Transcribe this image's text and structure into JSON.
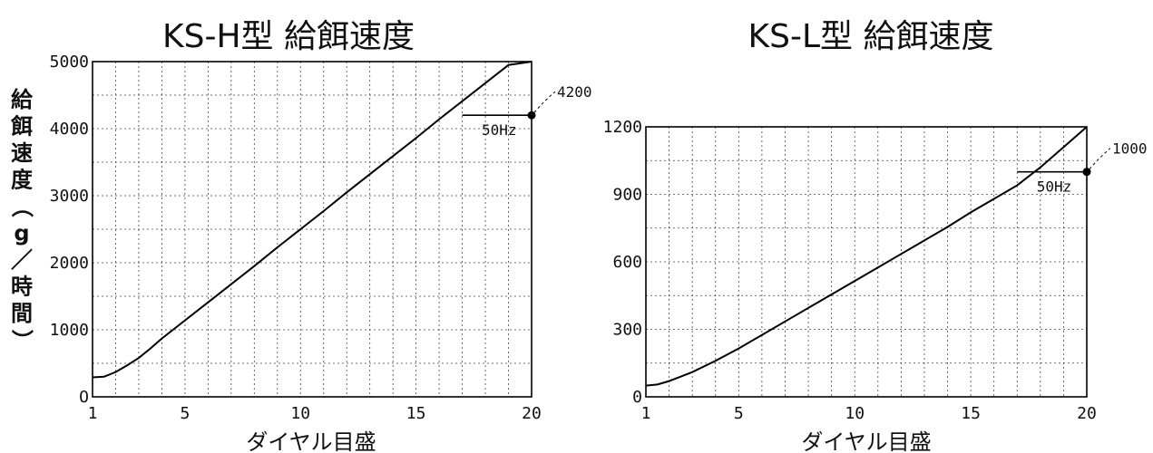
{
  "chart_data": [
    {
      "type": "line",
      "title": "KS-H型 給餌速度",
      "xlabel": "ダイヤル目盛",
      "ylabel": "給餌速度（g／時間）",
      "xlim": [
        1,
        20
      ],
      "ylim": [
        0,
        5000
      ],
      "x_ticks": [
        "1",
        "5",
        "10",
        "15",
        "20"
      ],
      "y_ticks": [
        "O",
        "1000",
        "2000",
        "3000",
        "4000",
        "5000"
      ],
      "grid": true,
      "series": [
        {
          "x": [
            1,
            1.5,
            2,
            2.5,
            3,
            3.5,
            4,
            5,
            6,
            7,
            8,
            9,
            10,
            11,
            12,
            13,
            14,
            15,
            16,
            17,
            18,
            19,
            20
          ],
          "y": [
            290,
            300,
            370,
            470,
            580,
            720,
            870,
            1140,
            1410,
            1680,
            1950,
            2230,
            2500,
            2770,
            3050,
            3320,
            3590,
            3860,
            4140,
            4410,
            4680,
            4950,
            5000
          ]
        }
      ],
      "annotations": {
        "hz_label": "50Hz",
        "hz_value_label": "4200",
        "hz_value": 4200,
        "hz_x_start": 17,
        "hz_x_end": 20
      }
    },
    {
      "type": "line",
      "title": "KS-L型 給餌速度",
      "xlabel": "ダイヤル目盛",
      "xlim": [
        1,
        20
      ],
      "ylim": [
        0,
        1200
      ],
      "x_ticks": [
        "1",
        "5",
        "10",
        "15",
        "20"
      ],
      "y_ticks": [
        "0",
        "300",
        "600",
        "900",
        "1200"
      ],
      "grid": true,
      "series": [
        {
          "x": [
            1,
            1.5,
            2,
            2.5,
            3,
            4,
            5,
            6,
            7,
            8,
            9,
            10,
            11,
            12,
            13,
            14,
            15,
            16,
            17,
            18,
            19,
            20
          ],
          "y": [
            50,
            55,
            70,
            90,
            110,
            160,
            215,
            275,
            335,
            395,
            455,
            515,
            575,
            635,
            695,
            755,
            820,
            880,
            940,
            1020,
            1110,
            1200
          ]
        }
      ],
      "annotations": {
        "hz_label": "50Hz",
        "hz_value_label": "1000",
        "hz_value": 1000,
        "hz_x_start": 17,
        "hz_x_end": 20
      }
    }
  ]
}
